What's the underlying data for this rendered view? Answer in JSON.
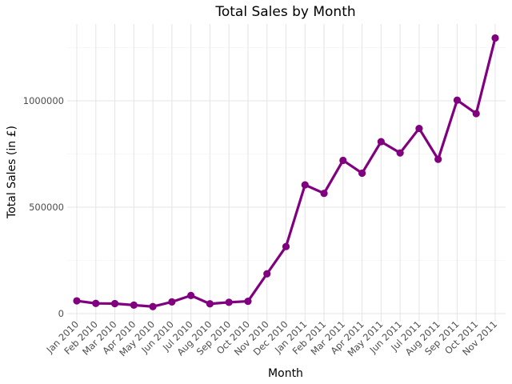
{
  "chart_data": {
    "type": "line",
    "title": "Total Sales by Month",
    "xlabel": "Month",
    "ylabel": "Total Sales (in £)",
    "categories": [
      "Jan 2010",
      "Feb 2010",
      "Mar 2010",
      "Apr 2010",
      "May 2010",
      "Jun 2010",
      "Jul 2010",
      "Aug 2010",
      "Sep 2010",
      "Oct 2010",
      "Nov 2010",
      "Dec 2010",
      "Jan 2011",
      "Feb 2011",
      "Mar 2011",
      "Apr 2011",
      "May 2011",
      "Jun 2011",
      "Jul 2011",
      "Aug 2011",
      "Sep 2011",
      "Oct 2011",
      "Nov 2011"
    ],
    "series": [
      {
        "values": [
          60000,
          48000,
          47000,
          40000,
          33000,
          55000,
          85000,
          46000,
          53000,
          58000,
          187000,
          315000,
          605000,
          565000,
          720000,
          660000,
          808000,
          755000,
          870000,
          725000,
          1003000,
          940000,
          1295000
        ]
      }
    ],
    "ylim": [
      0,
      1360000
    ],
    "yticks": [
      0,
      500000,
      1000000
    ],
    "ytick_labels": [
      "0",
      "500000",
      "1000000"
    ],
    "grid": true,
    "line_color": "#800080"
  }
}
